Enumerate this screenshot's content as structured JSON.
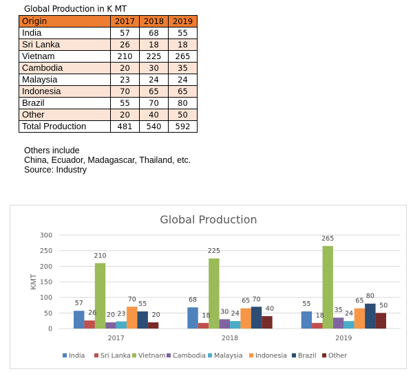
{
  "table": {
    "title": "Global Production in K MT",
    "headers": [
      "Origin",
      "2017",
      "2018",
      "2019"
    ],
    "rows": [
      {
        "origin": "India",
        "values": [
          "57",
          "68",
          "55"
        ]
      },
      {
        "origin": "Sri Lanka",
        "values": [
          "26",
          "18",
          "18"
        ]
      },
      {
        "origin": "Vietnam",
        "values": [
          "210",
          "225",
          "265"
        ]
      },
      {
        "origin": "Cambodia",
        "values": [
          "20",
          "30",
          "35"
        ]
      },
      {
        "origin": "Malaysia",
        "values": [
          "23",
          "24",
          "24"
        ]
      },
      {
        "origin": "Indonesia",
        "values": [
          "70",
          "65",
          "65"
        ]
      },
      {
        "origin": "Brazil",
        "values": [
          "55",
          "70",
          "80"
        ]
      },
      {
        "origin": "Other",
        "values": [
          "20",
          "40",
          "50"
        ]
      }
    ],
    "total": {
      "origin": "Total Production",
      "values": [
        "481",
        "540",
        "592"
      ]
    },
    "header_color": "#ed7d31",
    "alt_row_color": "#fbe4d5"
  },
  "notes": {
    "line1": "Others include",
    "line2": "China, Ecuador, Madagascar, Thailand, etc.",
    "line3": "Source: Industry"
  },
  "chart_data": {
    "type": "bar",
    "title": "Global Production",
    "xlabel": "",
    "ylabel": "KMT",
    "ylim": [
      0,
      300
    ],
    "yticks": [
      0,
      50,
      100,
      150,
      200,
      250,
      300
    ],
    "grid": true,
    "legend_position": "bottom",
    "categories": [
      "2017",
      "2018",
      "2019"
    ],
    "series": [
      {
        "name": "India",
        "color": "#4f81bd",
        "values": [
          57,
          68,
          55
        ]
      },
      {
        "name": "Sri Lanka",
        "color": "#c0504d",
        "values": [
          26,
          18,
          18
        ]
      },
      {
        "name": "Vietnam",
        "color": "#9bbb59",
        "values": [
          210,
          225,
          265
        ]
      },
      {
        "name": "Cambodia",
        "color": "#8064a2",
        "values": [
          20,
          30,
          35
        ]
      },
      {
        "name": "Malaysia",
        "color": "#4bacc6",
        "values": [
          23,
          24,
          24
        ]
      },
      {
        "name": "Indonesia",
        "color": "#f79646",
        "values": [
          70,
          65,
          65
        ]
      },
      {
        "name": "Brazil",
        "color": "#2c4d75",
        "values": [
          55,
          70,
          80
        ]
      },
      {
        "name": "Other",
        "color": "#772c2a",
        "values": [
          20,
          40,
          50
        ]
      }
    ]
  }
}
